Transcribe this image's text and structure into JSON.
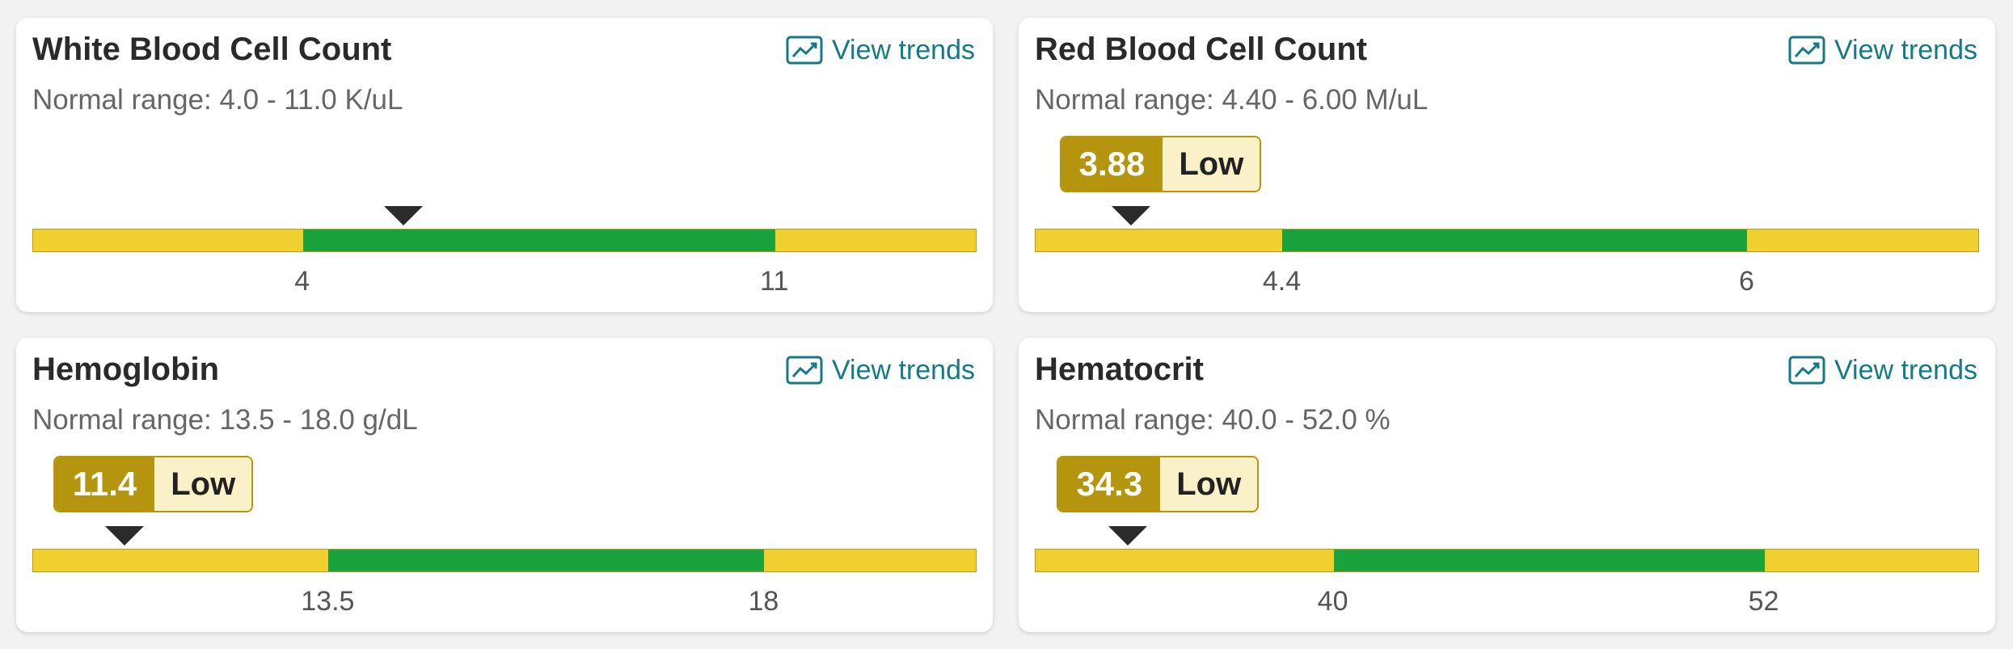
{
  "trend_label": "View trends",
  "trend_icon": "line-chart-icon",
  "colors": {
    "normal": "#1aa33c",
    "low": "#b5950e",
    "warn_zone": "#f0cf2e",
    "link": "#147a85"
  },
  "cards": [
    {
      "title": "White Blood Cell Count",
      "range_text": "Normal range: 4.0 - 11.0 K/uL",
      "value": "5.5",
      "value_num": 5.5,
      "status": "normal",
      "status_label": "",
      "low": 4,
      "high": 11,
      "low_label": "4",
      "high_label": "11",
      "scale_min": 0.0,
      "scale_max": 14.0
    },
    {
      "title": "Red Blood Cell Count",
      "range_text": "Normal range: 4.40 - 6.00 M/uL",
      "value": "3.88",
      "value_num": 3.88,
      "status": "low",
      "status_label": "Low",
      "low": 4.4,
      "high": 6,
      "low_label": "4.4",
      "high_label": "6",
      "scale_min": 3.55,
      "scale_max": 6.8
    },
    {
      "title": "Hemoglobin",
      "range_text": "Normal range: 13.5 - 18.0 g/dL",
      "value": "11.4",
      "value_num": 11.4,
      "status": "low",
      "status_label": "Low",
      "low": 13.5,
      "high": 18,
      "low_label": "13.5",
      "high_label": "18",
      "scale_min": 10.45,
      "scale_max": 20.2
    },
    {
      "title": "Hematocrit",
      "range_text": "Normal range: 40.0 - 52.0 %",
      "value": "34.3",
      "value_num": 34.3,
      "status": "low",
      "status_label": "Low",
      "low": 40,
      "high": 52,
      "low_label": "40",
      "high_label": "52",
      "scale_min": 31.7,
      "scale_max": 58.0
    }
  ]
}
